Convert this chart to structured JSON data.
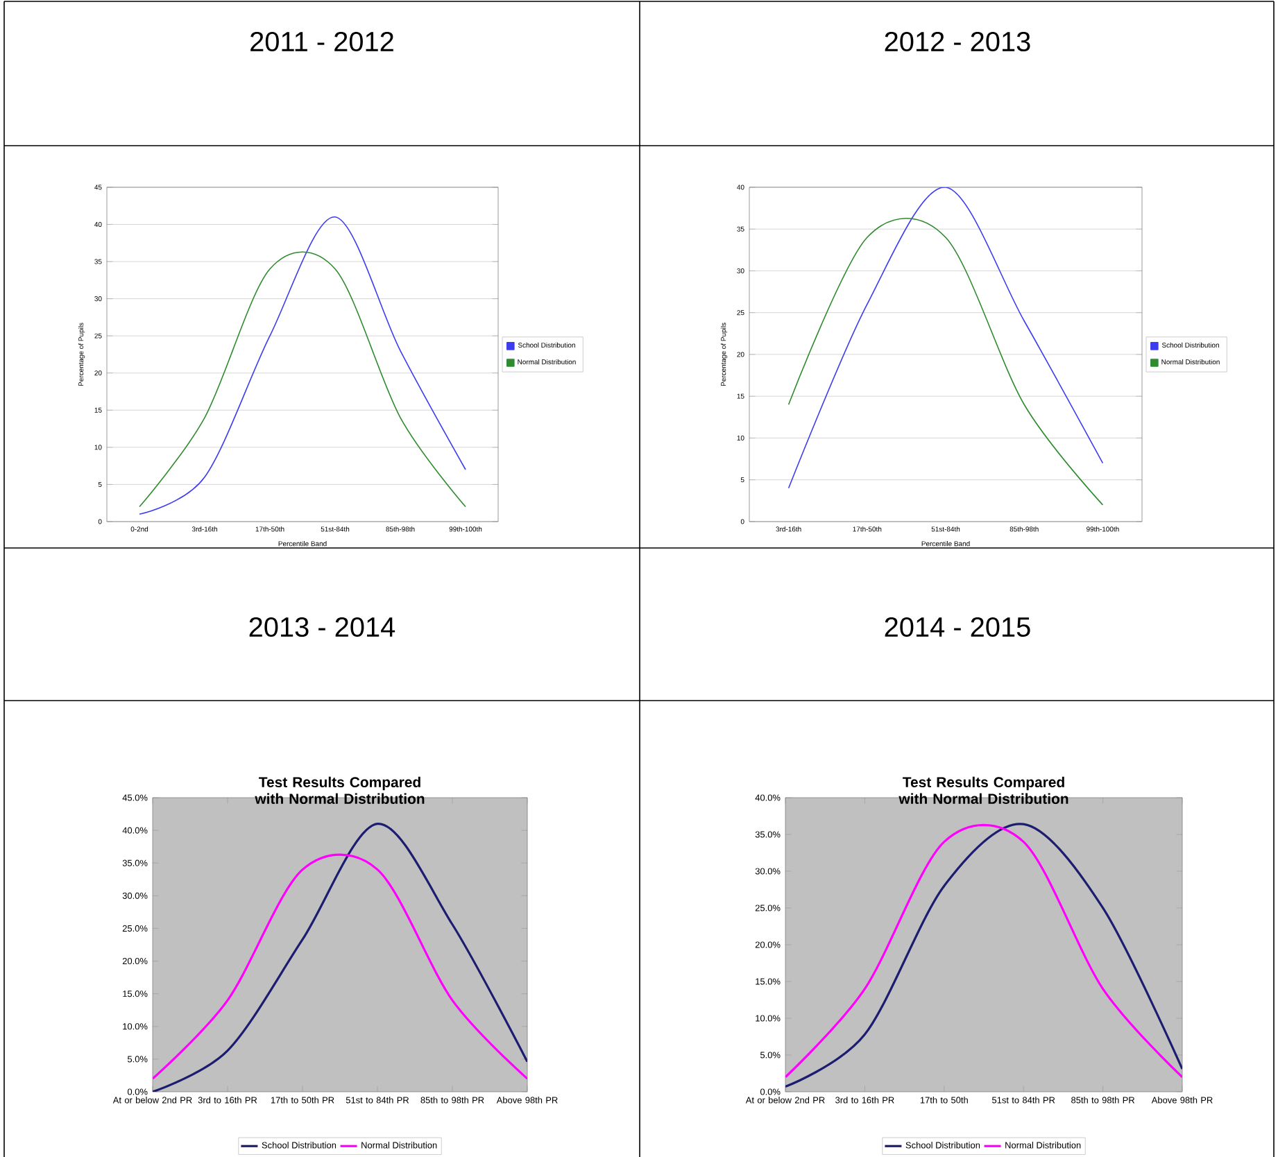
{
  "chart_data": [
    {
      "type": "line",
      "title": "2011 - 2012",
      "xlabel": "Percentile Band",
      "ylabel": "Percentage of Pupils",
      "categories": [
        "0-2nd",
        "3rd-16th",
        "17th-50th",
        "51st-84th",
        "85th-98th",
        "99th-100th"
      ],
      "series": [
        {
          "name": "School Distribution",
          "color": "#3c3cf0",
          "values": [
            1,
            6,
            25,
            41,
            23,
            7
          ]
        },
        {
          "name": "Normal Distribution",
          "color": "#2e8b2e",
          "values": [
            2,
            14,
            34,
            34,
            14,
            2
          ]
        }
      ],
      "ylim": [
        0,
        45
      ],
      "yticks": [
        0,
        5,
        10,
        15,
        20,
        25,
        30,
        35,
        40,
        45
      ],
      "grid": "y",
      "legend": "right",
      "marker": "none"
    },
    {
      "type": "line",
      "title": "2012 - 2013",
      "xlabel": "Percentile Band",
      "ylabel": "Percentage of Pupils",
      "categories": [
        "3rd-16th",
        "17th-50th",
        "51st-84th",
        "85th-98th",
        "99th-100th"
      ],
      "series": [
        {
          "name": "School Distribution",
          "color": "#3c3cf0",
          "values": [
            4,
            26,
            40,
            24,
            7
          ]
        },
        {
          "name": "Normal Distribution",
          "color": "#2e8b2e",
          "values": [
            14,
            34,
            34,
            14,
            2
          ]
        }
      ],
      "ylim": [
        0,
        40
      ],
      "yticks": [
        0,
        5,
        10,
        15,
        20,
        25,
        30,
        35,
        40
      ],
      "grid": "y",
      "legend": "right",
      "marker": "none"
    },
    {
      "type": "line",
      "title": "2013 - 2014",
      "subtitle": "Test Results Compared with Normal Distribution",
      "categories": [
        "At or below 2nd PR",
        "3rd to 16th PR",
        "17th to 50th PR",
        "51st to 84th PR",
        "85th to 98th PR",
        "Above 98th PR"
      ],
      "series": [
        {
          "name": "School Distribution",
          "color": "#1c1c70",
          "values": [
            0,
            6.3,
            23.3,
            41,
            25.6,
            4.6
          ]
        },
        {
          "name": "Normal Distribution",
          "color": "#ff00ff",
          "values": [
            2,
            14,
            34,
            34,
            14,
            2
          ]
        }
      ],
      "ylim": [
        0,
        45
      ],
      "yticks": [
        {
          "value": 0,
          "label": "0.0%"
        },
        {
          "value": 5,
          "label": "5.0%"
        },
        {
          "value": 10,
          "label": "10.0%"
        },
        {
          "value": 15,
          "label": "15.0%"
        },
        {
          "value": 20,
          "label": "20.0%"
        },
        {
          "value": 25,
          "label": "25.0%"
        },
        {
          "value": 30,
          "label": "30.0%"
        },
        {
          "value": 35,
          "label": "35.0%"
        },
        {
          "value": 40,
          "label": "40.0%"
        },
        {
          "value": 45,
          "label": "45.0%"
        }
      ],
      "legend": "bottom",
      "marker": "none"
    },
    {
      "type": "line",
      "title": "2014 - 2015",
      "subtitle": "Test Results Compared with Normal Distribution",
      "categories": [
        "At or below 2nd PR",
        "3rd to 16th PR",
        "17th to 50th",
        "51st to 84th PR",
        "85th to 98th PR",
        "Above 98th PR"
      ],
      "series": [
        {
          "name": "School Distribution",
          "color": "#1c1c70",
          "values": [
            0.7,
            7.8,
            28,
            36.4,
            25,
            3.1
          ]
        },
        {
          "name": "Normal Distribution",
          "color": "#ff00ff",
          "values": [
            2,
            14,
            34,
            34,
            14,
            2
          ]
        }
      ],
      "ylim": [
        0,
        40
      ],
      "yticks": [
        {
          "value": 0,
          "label": "0.0%"
        },
        {
          "value": 5,
          "label": "5.0%"
        },
        {
          "value": 10,
          "label": "10.0%"
        },
        {
          "value": 15,
          "label": "15.0%"
        },
        {
          "value": 20,
          "label": "20.0%"
        },
        {
          "value": 25,
          "label": "25.0%"
        },
        {
          "value": 30,
          "label": "30.0%"
        },
        {
          "value": 35,
          "label": "35.0%"
        },
        {
          "value": 40,
          "label": "40.0%"
        }
      ],
      "legend": "bottom",
      "marker": "none"
    }
  ]
}
